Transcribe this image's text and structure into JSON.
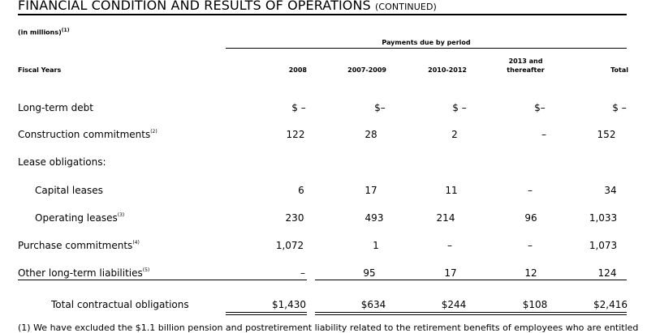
{
  "title": {
    "main": "FINANCIAL CONDITION AND RESULTS OF OPERATIONS",
    "continued": "(CONTINUED)"
  },
  "units_note": "(in millions)",
  "units_note_ref": "(1)",
  "payments_header": "Payments due by period",
  "columns": {
    "fiscal_years": "Fiscal Years",
    "c1": "2008",
    "c2": "2007-2009",
    "c3": "2010-2012",
    "c4_line1": "2013 and",
    "c4_line2": "thereafter",
    "c5": "Total"
  },
  "rows": [
    {
      "label": "Long-term debt",
      "ref": "",
      "values": [
        "$ –",
        "$–",
        "$ –",
        "$–",
        "$ –"
      ]
    },
    {
      "label": "Construction commitments",
      "ref": "(2)",
      "values": [
        "122",
        "28",
        "2",
        "–",
        "152"
      ]
    },
    {
      "label": "Lease obligations:",
      "ref": "",
      "values": [
        "",
        "",
        "",
        "",
        ""
      ]
    },
    {
      "label": "Capital leases",
      "ref": "",
      "values": [
        "6",
        "17",
        "11",
        "–",
        "34"
      ]
    },
    {
      "label": "Operating leases",
      "ref": "(3)",
      "values": [
        "230",
        "493",
        "214",
        "96",
        "1,033"
      ]
    },
    {
      "label": "Purchase commitments",
      "ref": "(4)",
      "values": [
        "1,072",
        "1",
        "–",
        "–",
        "1,073"
      ]
    },
    {
      "label": "Other long-term liabilities",
      "ref": "(5)",
      "values": [
        "–",
        "95",
        "17",
        "12",
        "124"
      ]
    }
  ],
  "total": {
    "label": "Total contractual obligations",
    "values": [
      "$1,430",
      "$634",
      "$244",
      "$108",
      "$2,416"
    ]
  },
  "footnote_partial": "(1)  We have excluded the $1.1 billion pension and postretirement liability related to the retirement benefits of employees who are entitled"
}
